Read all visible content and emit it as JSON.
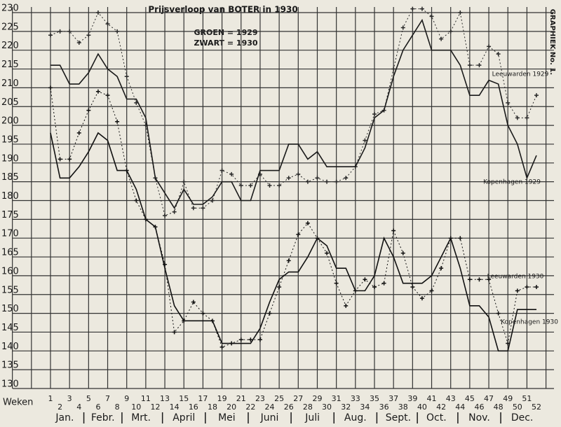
{
  "chart_data": {
    "type": "line",
    "title": "Prijsverloop van BOTER in 1930",
    "annotations": [
      "GROEN = 1929",
      "ZWART = 1930",
      "GRAPHIEK No. 1."
    ],
    "x_label": "Weken",
    "x": [
      1,
      2,
      3,
      4,
      5,
      6,
      7,
      8,
      9,
      10,
      11,
      12,
      13,
      14,
      15,
      16,
      17,
      18,
      19,
      20,
      21,
      22,
      23,
      24,
      25,
      26,
      27,
      28,
      29,
      30,
      31,
      32,
      33,
      34,
      35,
      36,
      37,
      38,
      39,
      40,
      41,
      42,
      43,
      44,
      45,
      46,
      47,
      48,
      49,
      50,
      51,
      52
    ],
    "xlim": [
      1,
      52
    ],
    "months": [
      "Jan.",
      "Febr.",
      "Mrt.",
      "April",
      "Mei",
      "Juni",
      "Juli",
      "Aug.",
      "Sept.",
      "Oct.",
      "Nov.",
      "Dec."
    ],
    "ylim": [
      130,
      230
    ],
    "yticks": [
      130,
      135,
      140,
      145,
      150,
      155,
      160,
      165,
      170,
      175,
      180,
      185,
      190,
      195,
      200,
      205,
      210,
      215,
      220,
      225,
      230
    ],
    "grid": true,
    "series": [
      {
        "name": "Leeuwarden 1929",
        "color": "#2a2a2a",
        "marker": "cross",
        "values": [
          224,
          225,
          225,
          222,
          224,
          230,
          227,
          225,
          213,
          206,
          200,
          186,
          176,
          177,
          185,
          178,
          178,
          180,
          188,
          187,
          184,
          184,
          187,
          184,
          184,
          186,
          187,
          185,
          186,
          185,
          185,
          186,
          189,
          196,
          203,
          204,
          215,
          226,
          231,
          231,
          229,
          223,
          225,
          230,
          216,
          216,
          221,
          219,
          206,
          202,
          202,
          208
        ]
      },
      {
        "name": "Kopenhagen 1929",
        "color": "#1a1a1a",
        "marker": "none",
        "values": [
          216,
          216,
          211,
          211,
          214,
          219,
          215,
          213,
          207,
          207,
          202,
          186,
          182,
          178,
          183,
          179,
          179,
          181,
          185,
          185,
          180,
          180,
          188,
          188,
          188,
          195,
          195,
          191,
          193,
          189,
          189,
          189,
          189,
          194,
          202,
          204,
          213,
          220,
          224,
          228,
          220,
          220,
          220,
          216,
          208,
          208,
          212,
          211,
          200,
          195,
          186,
          192
        ]
      },
      {
        "name": "Leeuwarden 1930",
        "color": "#111111",
        "marker": "cross",
        "values": [
          210,
          191,
          191,
          198,
          204,
          209,
          208,
          201,
          188,
          180,
          175,
          173,
          163,
          145,
          148,
          153,
          150,
          148,
          141,
          142,
          143,
          143,
          143,
          150,
          157,
          164,
          171,
          174,
          170,
          166,
          158,
          152,
          156,
          159,
          157,
          158,
          172,
          166,
          157,
          154,
          156,
          162,
          170,
          170,
          159,
          159,
          159,
          150,
          142,
          156,
          157,
          157
        ]
      },
      {
        "name": "Kopenhagen 1930",
        "color": "#111111",
        "marker": "none",
        "values": [
          198,
          186,
          186,
          189,
          193,
          198,
          196,
          188,
          188,
          183,
          175,
          173,
          162,
          152,
          148,
          148,
          148,
          148,
          142,
          142,
          142,
          142,
          146,
          153,
          159,
          161,
          161,
          165,
          170,
          168,
          162,
          162,
          156,
          156,
          160,
          170,
          165,
          158,
          158,
          158,
          160,
          165,
          170,
          162,
          152,
          152,
          149,
          140,
          140,
          151,
          151,
          151
        ]
      }
    ]
  }
}
